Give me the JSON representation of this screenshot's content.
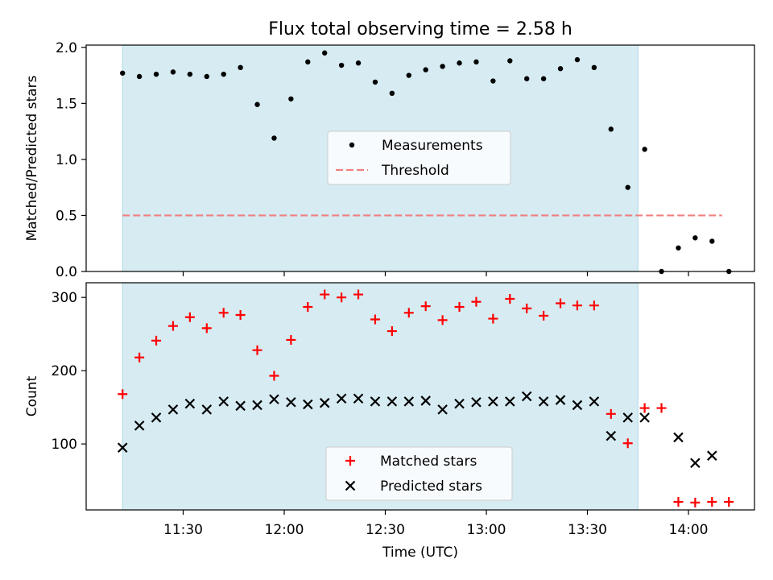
{
  "title": "Flux total observing time = 2.58 h",
  "colors": {
    "shade": "#add8e6",
    "measurement": "#000000",
    "threshold": "#f08080",
    "matched": "#ff0000",
    "predicted": "#000000"
  },
  "chart_data": [
    {
      "type": "scatter",
      "title": "Flux total observing time = 2.58 h",
      "ylabel": "Matched/Predicted stars",
      "ylim": [
        0,
        2.02
      ],
      "yticks": [
        "0.0",
        "0.5",
        "1.0",
        "1.5",
        "2.0"
      ],
      "shaded_interval": [
        "11:12",
        "13:45"
      ],
      "legend": {
        "position": "center",
        "entries": [
          "Measurements",
          "Threshold"
        ]
      },
      "threshold": {
        "name": "Threshold",
        "value": 0.5,
        "x_range": [
          "11:12",
          "14:10"
        ]
      },
      "series": [
        {
          "name": "Measurements",
          "marker": "dot",
          "x": [
            "11:12",
            "11:17",
            "11:22",
            "11:27",
            "11:32",
            "11:37",
            "11:42",
            "11:47",
            "11:52",
            "11:57",
            "12:02",
            "12:07",
            "12:12",
            "12:17",
            "12:22",
            "12:27",
            "12:32",
            "12:37",
            "12:42",
            "12:47",
            "12:52",
            "12:57",
            "13:02",
            "13:07",
            "13:12",
            "13:17",
            "13:22",
            "13:27",
            "13:32",
            "13:37",
            "13:42",
            "13:47",
            "13:52",
            "13:57",
            "14:02",
            "14:07",
            "14:12"
          ],
          "values": [
            1.77,
            1.74,
            1.76,
            1.78,
            1.76,
            1.74,
            1.76,
            1.82,
            1.49,
            1.19,
            1.54,
            1.87,
            1.95,
            1.84,
            1.86,
            1.69,
            1.59,
            1.75,
            1.8,
            1.83,
            1.86,
            1.87,
            1.7,
            1.88,
            1.72,
            1.72,
            1.81,
            1.89,
            1.82,
            1.27,
            0.75,
            1.09,
            0.0,
            0.21,
            0.3,
            0.27,
            0.0
          ]
        }
      ]
    },
    {
      "type": "scatter",
      "xlabel": "Time (UTC)",
      "ylabel": "Count",
      "ylim": [
        10,
        320
      ],
      "yticks": [
        "100",
        "200",
        "300"
      ],
      "xticks": [
        "11:30",
        "12:00",
        "12:30",
        "13:00",
        "13:30",
        "14:00"
      ],
      "shaded_interval": [
        "11:12",
        "13:45"
      ],
      "legend": {
        "position": "lower center",
        "entries": [
          "Matched stars",
          "Predicted stars"
        ]
      },
      "series": [
        {
          "name": "Matched stars",
          "marker": "plus",
          "x": [
            "11:12",
            "11:17",
            "11:22",
            "11:27",
            "11:32",
            "11:37",
            "11:42",
            "11:47",
            "11:52",
            "11:57",
            "12:02",
            "12:07",
            "12:12",
            "12:17",
            "12:22",
            "12:27",
            "12:32",
            "12:37",
            "12:42",
            "12:47",
            "12:52",
            "12:57",
            "13:02",
            "13:07",
            "13:12",
            "13:17",
            "13:22",
            "13:27",
            "13:32",
            "13:37",
            "13:42",
            "13:47",
            "13:52",
            "13:57",
            "14:02",
            "14:07",
            "14:12"
          ],
          "values": [
            168,
            218,
            241,
            261,
            273,
            258,
            279,
            276,
            228,
            193,
            242,
            287,
            304,
            300,
            304,
            270,
            254,
            279,
            288,
            269,
            287,
            294,
            271,
            298,
            285,
            275,
            292,
            289,
            289,
            141,
            101,
            149,
            149,
            21,
            20,
            21,
            21
          ]
        },
        {
          "name": "Predicted stars",
          "marker": "x",
          "x": [
            "11:12",
            "11:17",
            "11:22",
            "11:27",
            "11:32",
            "11:37",
            "11:42",
            "11:47",
            "11:52",
            "11:57",
            "12:02",
            "12:07",
            "12:12",
            "12:17",
            "12:22",
            "12:27",
            "12:32",
            "12:37",
            "12:42",
            "12:47",
            "12:52",
            "12:57",
            "13:02",
            "13:07",
            "13:12",
            "13:17",
            "13:22",
            "13:27",
            "13:32",
            "13:37",
            "13:42",
            "13:47",
            "13:57",
            "14:02",
            "14:07"
          ],
          "values": [
            95,
            125,
            136,
            147,
            155,
            147,
            158,
            152,
            153,
            161,
            157,
            154,
            156,
            162,
            162,
            158,
            158,
            158,
            159,
            147,
            155,
            157,
            158,
            158,
            165,
            158,
            160,
            153,
            158,
            111,
            136,
            136,
            109,
            74,
            84
          ]
        }
      ]
    }
  ]
}
